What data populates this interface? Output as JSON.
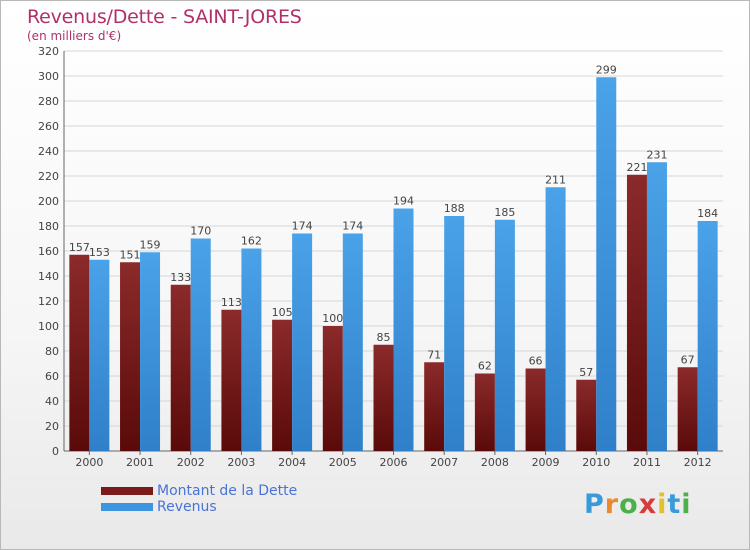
{
  "chart_data": {
    "type": "bar",
    "title": "Revenus/Dette - SAINT-JORES",
    "subtitle": "(en milliers d'€)",
    "categories": [
      "2000",
      "2001",
      "2002",
      "2003",
      "2004",
      "2005",
      "2006",
      "2007",
      "2008",
      "2009",
      "2010",
      "2011",
      "2012"
    ],
    "series": [
      {
        "name": "Montant de la Dette",
        "color": "#7a1a1a",
        "values": [
          157,
          151,
          133,
          113,
          105,
          100,
          85,
          71,
          62,
          66,
          57,
          221,
          67
        ]
      },
      {
        "name": "Revenus",
        "color": "#3d95df",
        "values": [
          153,
          159,
          170,
          162,
          174,
          174,
          194,
          188,
          185,
          211,
          299,
          231,
          184
        ]
      }
    ],
    "ylim": [
      0,
      320
    ],
    "ytick_step": 20,
    "grid": true,
    "legend_position": "bottom-left"
  },
  "brand": {
    "text": "Proxiti"
  }
}
